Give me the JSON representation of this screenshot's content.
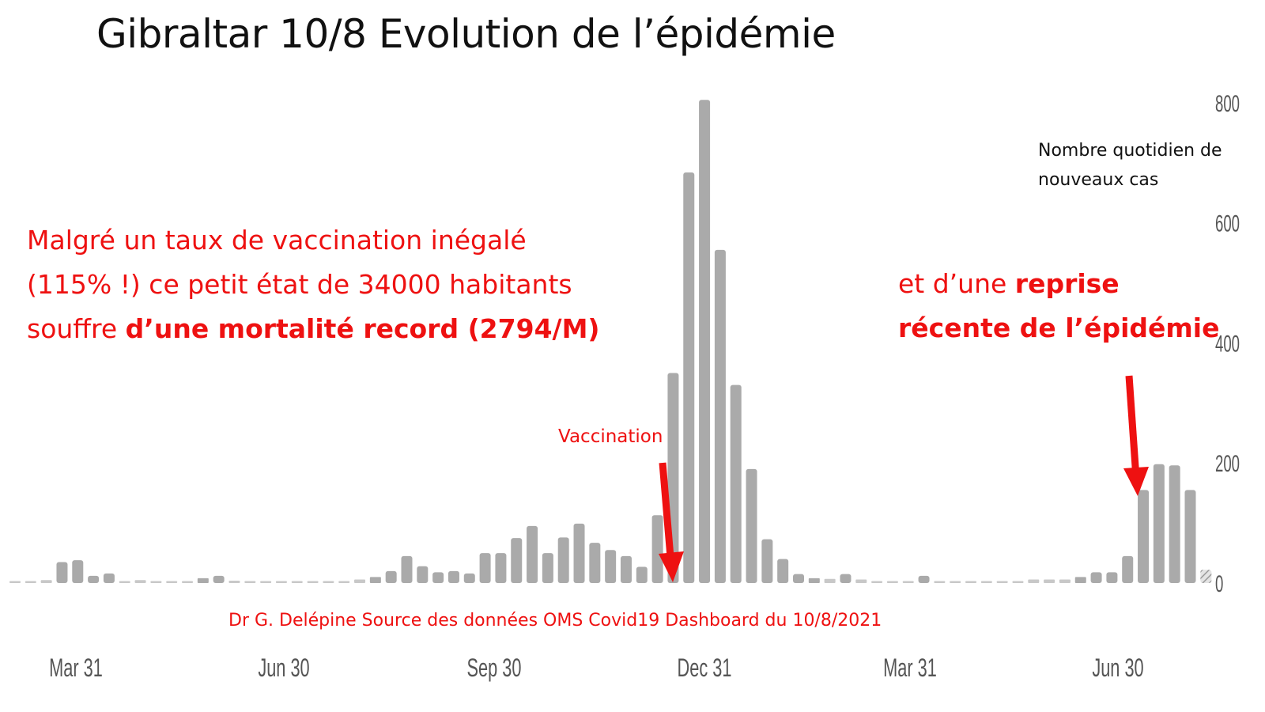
{
  "slide": {
    "title": "Gibraltar 10/8 Evolution de l’épidémie",
    "ylabel_lines": [
      "Nombre quotidien de",
      "nouveaux cas"
    ],
    "left_note": {
      "line1": "Malgré un taux de vaccination inégalé",
      "line2": "(115% !) ce petit état de 34000 habitants",
      "line3_normal": "souffre ",
      "line3_bold": "d’une mortalité record (2794/M)"
    },
    "right_note": {
      "line1_normal": "et d’une ",
      "line1_bold": "reprise",
      "line2_bold": "récente de l’épidémie"
    },
    "vaccination_label": "Vaccination",
    "source": "Dr G. Delépine Source des données OMS Covid19 Dashboard du 10/8/2021"
  },
  "colors": {
    "bar": "#aaaaaa",
    "bar_zero": "#c8c8c8",
    "annotation_red": "#ee1111",
    "axis_text": "#555555",
    "title_text": "#111111"
  },
  "chart_data": {
    "type": "bar",
    "ylim": [
      0,
      800
    ],
    "yticks": [
      0,
      200,
      400,
      600,
      800
    ],
    "xtick_labels": [
      "Mar 31",
      "Jun 30",
      "Sep 30",
      "Dec 31",
      "Mar 31",
      "Jun 30"
    ],
    "grid": false,
    "series": [
      {
        "values": [
          0,
          0,
          5,
          35,
          38,
          12,
          16,
          2,
          5,
          2,
          1,
          2,
          8,
          12,
          4,
          0,
          0,
          2,
          2,
          0,
          3,
          2,
          6,
          10,
          20,
          45,
          28,
          18,
          20,
          16,
          50,
          50,
          75,
          95,
          50,
          76,
          99,
          67,
          55,
          45,
          27,
          113,
          350,
          684,
          805,
          555,
          330,
          190,
          73,
          40,
          15,
          8,
          7,
          15,
          6,
          3,
          2,
          2,
          12,
          0,
          0,
          0,
          1,
          0,
          0,
          6,
          6,
          6,
          10,
          18,
          18,
          45,
          155,
          198,
          196,
          155,
          22
        ],
        "note": "Weekly new cases; the last week is partial (hatched)"
      }
    ],
    "annotations": [
      "Vaccination",
      "reprise récente de l’épidémie"
    ]
  }
}
